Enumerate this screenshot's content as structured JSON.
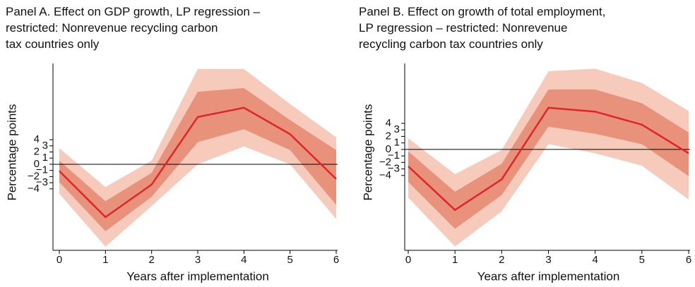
{
  "chart_data": [
    {
      "type": "line",
      "title": [
        "Panel A. Effect on GDP growth, LP regression –",
        "restricted: Nonrevenue recycling carbon",
        "tax countries only"
      ],
      "x_label": "Years after implementation",
      "y_label": "Percentage points",
      "x": [
        0,
        1,
        2,
        3,
        4,
        5,
        6
      ],
      "xlim": [
        0,
        6
      ],
      "xticks": [
        0,
        1,
        2,
        3,
        4,
        5,
        6
      ],
      "ylim": [
        -14,
        16.4
      ],
      "yticks": [
        {
          "value": -4,
          "label": "−4"
        },
        {
          "value": -3,
          "label": "−3"
        },
        {
          "value": -2,
          "label": "−2"
        },
        {
          "value": -1,
          "label": "−1"
        },
        0,
        1,
        2,
        3,
        4
      ],
      "hline": 0,
      "bands": [
        {
          "color": "#f6cbbb",
          "upper": [
            2.6,
            -3.7,
            0.6,
            15.5,
            15.5,
            9.8,
            4.4
          ],
          "lower": [
            -4.8,
            -13.4,
            -6.8,
            0,
            2.9,
            0,
            -8.9
          ]
        },
        {
          "color": "#e8917b",
          "upper": [
            0.6,
            -6.0,
            -1.4,
            11.8,
            12.4,
            7.2,
            2.3
          ],
          "lower": [
            -2.9,
            -10.9,
            -5.3,
            3.6,
            5.7,
            2.3,
            -6.6
          ]
        }
      ],
      "series": [
        {
          "color": "#e0242a",
          "values": [
            -1.1,
            -8.6,
            -3.3,
            7.7,
            9.2,
            4.9,
            -2.4
          ]
        }
      ]
    },
    {
      "type": "line",
      "title": [
        "Panel B. Effect on growth of total employment,",
        "LP regression – restricted: Nonrevenue",
        "recycling carbon tax countries only"
      ],
      "x_label": "Years after implementation",
      "y_label": "Percentage points",
      "x": [
        0,
        1,
        2,
        3,
        4,
        5,
        6
      ],
      "xlim": [
        0,
        6
      ],
      "xticks": [
        0,
        1,
        2,
        3,
        4,
        5,
        6
      ],
      "ylim": [
        -15.5,
        13.2
      ],
      "yticks": [
        {
          "value": -4,
          "label": "−4"
        },
        {
          "value": -3,
          "label": "−3"
        },
        {
          "value": -2,
          "label": "−2"
        },
        {
          "value": -1,
          "label": "−1"
        },
        0,
        1,
        2,
        3,
        4
      ],
      "hline": 0,
      "bands": [
        {
          "color": "#f6cbbb",
          "upper": [
            1.7,
            -3.8,
            -0.1,
            12.0,
            12.4,
            10.2,
            5.9
          ],
          "lower": [
            -7.4,
            -14.9,
            -9.5,
            0.8,
            -0.6,
            -2.5,
            -7.7
          ]
        },
        {
          "color": "#e8917b",
          "upper": [
            -0.3,
            -6.5,
            -2.2,
            9.2,
            9.2,
            7.1,
            2.6
          ],
          "lower": [
            -5.0,
            -12.2,
            -7.0,
            3.5,
            2.4,
            0.8,
            -4.1
          ]
        }
      ],
      "series": [
        {
          "color": "#e0242a",
          "values": [
            -2.6,
            -9.3,
            -4.6,
            6.4,
            5.8,
            3.8,
            -0.6
          ]
        }
      ]
    }
  ]
}
